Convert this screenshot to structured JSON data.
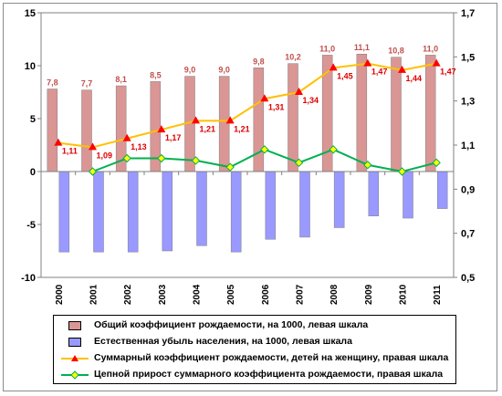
{
  "chart_data": {
    "type": "bar",
    "categories": [
      "2000",
      "2001",
      "2002",
      "2003",
      "2004",
      "2005",
      "2006",
      "2007",
      "2008",
      "2009",
      "2010",
      "2011"
    ],
    "left_axis": {
      "ylim": [
        -10,
        15
      ],
      "ticks": [
        "15",
        "10",
        "5",
        "0",
        "-5",
        "-10"
      ]
    },
    "right_axis": {
      "ylim": [
        0.5,
        1.7
      ],
      "ticks": [
        "1,7",
        "1,5",
        "1,3",
        "1,1",
        "0,9",
        "0,7",
        "0,5"
      ]
    },
    "grid": false,
    "legend_position": "bottom",
    "series": [
      {
        "name": "Общий коэффициент  рождаемости, на 1000, левая шкала",
        "type": "bar",
        "axis": "left",
        "color": "#d99694",
        "values": [
          7.8,
          7.7,
          8.1,
          8.5,
          9.0,
          9.0,
          9.8,
          10.2,
          11.0,
          11.1,
          10.8,
          11.0
        ],
        "labels": [
          "7,8",
          "7,7",
          "8,1",
          "8,5",
          "9,0",
          "9,0",
          "9,8",
          "10,2",
          "11,0",
          "11,1",
          "10,8",
          "11,0"
        ]
      },
      {
        "name": "Естественная  убыль населения, на 1000, левая шкала",
        "type": "bar",
        "axis": "left",
        "color": "#9999ff",
        "values": [
          -7.6,
          -7.6,
          -7.6,
          -7.5,
          -7.0,
          -7.6,
          -6.4,
          -6.2,
          -5.3,
          -4.2,
          -4.4,
          -3.5
        ]
      },
      {
        "name": "Суммарный коэффициент  рождаемости, детей на женщину, правая шкала",
        "type": "line",
        "axis": "right",
        "color": "#ffc000",
        "marker_color": "#ff0000",
        "values": [
          1.11,
          1.09,
          1.13,
          1.17,
          1.21,
          1.21,
          1.31,
          1.34,
          1.45,
          1.47,
          1.44,
          1.47
        ],
        "labels": [
          "1,11",
          "1,09",
          "1,13",
          "1,17",
          "1,21",
          "1,21",
          "1,31",
          "1,34",
          "1,45",
          "1,47",
          "1,44",
          "1,47"
        ]
      },
      {
        "name": "Цепной прирост суммарного  коэффициента  рождаемости, правая шкала",
        "type": "line",
        "axis": "right",
        "color": "#00b050",
        "marker_color": "#ffff00",
        "values": [
          null,
          0.98,
          1.04,
          1.04,
          1.03,
          1.0,
          1.08,
          1.02,
          1.08,
          1.01,
          0.98,
          1.02
        ]
      }
    ]
  }
}
